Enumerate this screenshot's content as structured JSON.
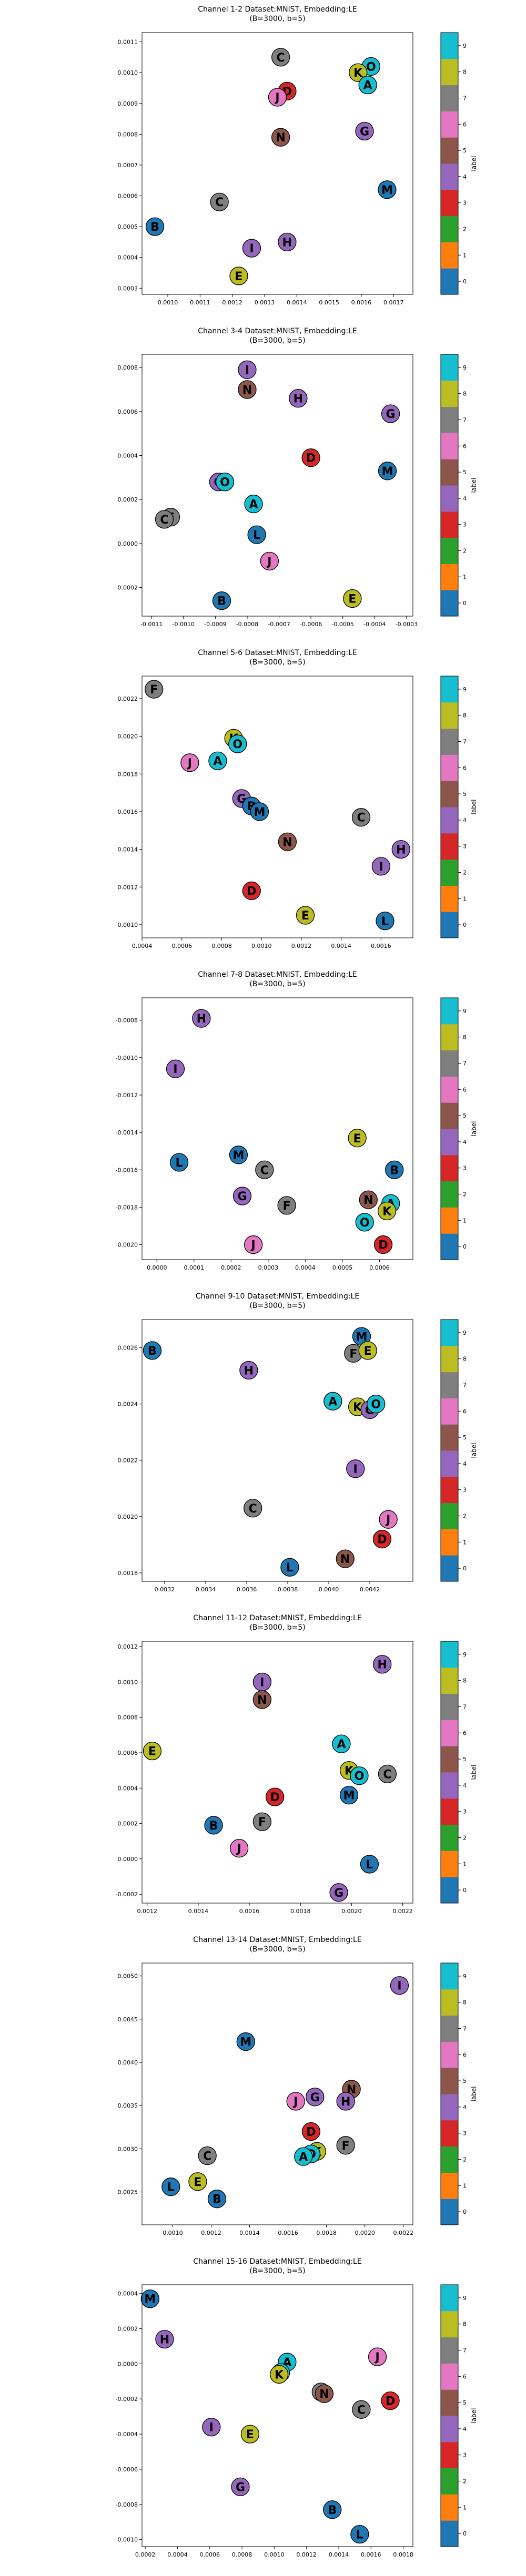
{
  "colorbar": {
    "label": "label",
    "ticks": [
      "0",
      "1",
      "2",
      "3",
      "4",
      "5",
      "6",
      "7",
      "8",
      "9"
    ],
    "colors": [
      "#1f77b4",
      "#ff7f0e",
      "#2ca02c",
      "#d62728",
      "#9467bd",
      "#8c564b",
      "#e377c2",
      "#7f7f7f",
      "#bcbd22",
      "#17becf"
    ]
  },
  "letter_colors": {
    "B": "#1f77b4",
    "D": "#d62728",
    "H": "#9467bd",
    "G": "#9467bd",
    "I": "#9467bd",
    "N": "#8c564b",
    "J": "#e377c2",
    "C": "#7f7f7f",
    "F": "#7f7f7f",
    "E": "#bcbd22",
    "K": "#bcbd22",
    "A": "#17becf",
    "O": "#17becf",
    "L": "#1f77b4",
    "M": "#1f77b4"
  },
  "chart_data": [
    {
      "type": "scatter",
      "title": "Channel 1-2 Dataset:MNIST, Embedding:LE",
      "subtitle": "(B=3000, b=5)",
      "xlim": [
        0.00092,
        0.00176
      ],
      "ylim": [
        0.00028,
        0.00113
      ],
      "xticks": [
        "0.0010",
        "0.0011",
        "0.0012",
        "0.0013",
        "0.0014",
        "0.0015",
        "0.0016",
        "0.0017"
      ],
      "yticks": [
        "0.0003",
        "0.0004",
        "0.0005",
        "0.0006",
        "0.0007",
        "0.0008",
        "0.0009",
        "0.0010",
        "0.0011"
      ],
      "points": [
        {
          "label": "C",
          "x": 0.00135,
          "y": 0.00105
        },
        {
          "label": "O",
          "x": 0.00163,
          "y": 0.00102
        },
        {
          "label": "K",
          "x": 0.00159,
          "y": 0.001
        },
        {
          "label": "A",
          "x": 0.00162,
          "y": 0.00096
        },
        {
          "label": "D",
          "x": 0.00137,
          "y": 0.00094
        },
        {
          "label": "J",
          "x": 0.00134,
          "y": 0.00092
        },
        {
          "label": "G",
          "x": 0.00161,
          "y": 0.00081
        },
        {
          "label": "N",
          "x": 0.00135,
          "y": 0.00079
        },
        {
          "label": "M",
          "x": 0.00168,
          "y": 0.00062
        },
        {
          "label": "C",
          "x": 0.00116,
          "y": 0.00058
        },
        {
          "label": "B",
          "x": 0.00096,
          "y": 0.0005
        },
        {
          "label": "H",
          "x": 0.00137,
          "y": 0.00045
        },
        {
          "label": "I",
          "x": 0.00126,
          "y": 0.00043
        },
        {
          "label": "E",
          "x": 0.00122,
          "y": 0.00034
        }
      ]
    },
    {
      "type": "scatter",
      "title": "Channel 3-4 Dataset:MNIST, Embedding:LE",
      "subtitle": "(B=3000, b=5)",
      "xlim": [
        -0.00113,
        -0.00028
      ],
      "ylim": [
        -0.00033,
        0.00086
      ],
      "xticks": [
        "-0.0011",
        "-0.0010",
        "-0.0009",
        "-0.0008",
        "-0.0007",
        "-0.0006",
        "-0.0005",
        "-0.0004",
        "-0.0003"
      ],
      "yticks": [
        "-0.0002",
        "0.0000",
        "0.0002",
        "0.0004",
        "0.0006",
        "0.0008"
      ],
      "points": [
        {
          "label": "I",
          "x": -0.0008,
          "y": 0.00079
        },
        {
          "label": "N",
          "x": -0.0008,
          "y": 0.0007
        },
        {
          "label": "H",
          "x": -0.00064,
          "y": 0.00066
        },
        {
          "label": "G",
          "x": -0.00035,
          "y": 0.00059
        },
        {
          "label": "D",
          "x": -0.0006,
          "y": 0.00039
        },
        {
          "label": "M",
          "x": -0.00036,
          "y": 0.00033
        },
        {
          "label": "G",
          "x": -0.00089,
          "y": 0.00028
        },
        {
          "label": "O",
          "x": -0.00087,
          "y": 0.00028
        },
        {
          "label": "A",
          "x": -0.00078,
          "y": 0.00018
        },
        {
          "label": "F",
          "x": -0.00104,
          "y": 0.00012
        },
        {
          "label": "C",
          "x": -0.00106,
          "y": 0.00011
        },
        {
          "label": "L",
          "x": -0.00077,
          "y": 4e-05
        },
        {
          "label": "J",
          "x": -0.00073,
          "y": -8e-05
        },
        {
          "label": "B",
          "x": -0.00088,
          "y": -0.00026
        },
        {
          "label": "E",
          "x": -0.00047,
          "y": -0.00025
        }
      ]
    },
    {
      "type": "scatter",
      "title": "Channel 5-6 Dataset:MNIST, Embedding:LE",
      "subtitle": "(B=3000, b=5)",
      "xlim": [
        0.0004,
        0.00176
      ],
      "ylim": [
        0.00093,
        0.00232
      ],
      "xticks": [
        "0.0004",
        "0.0006",
        "0.0008",
        "0.0010",
        "0.0012",
        "0.0014",
        "0.0016"
      ],
      "yticks": [
        "0.0010",
        "0.0012",
        "0.0014",
        "0.0016",
        "0.0018",
        "0.0020",
        "0.0022"
      ],
      "points": [
        {
          "label": "F",
          "x": 0.00046,
          "y": 0.00225
        },
        {
          "label": "K",
          "x": 0.00086,
          "y": 0.00199
        },
        {
          "label": "O",
          "x": 0.00088,
          "y": 0.00196
        },
        {
          "label": "A",
          "x": 0.00078,
          "y": 0.00187
        },
        {
          "label": "J",
          "x": 0.00064,
          "y": 0.00186
        },
        {
          "label": "G",
          "x": 0.0009,
          "y": 0.00167
        },
        {
          "label": "B",
          "x": 0.00095,
          "y": 0.00163
        },
        {
          "label": "M",
          "x": 0.00099,
          "y": 0.0016
        },
        {
          "label": "C",
          "x": 0.0015,
          "y": 0.00157
        },
        {
          "label": "N",
          "x": 0.00113,
          "y": 0.00144
        },
        {
          "label": "H",
          "x": 0.0017,
          "y": 0.0014
        },
        {
          "label": "I",
          "x": 0.0016,
          "y": 0.00131
        },
        {
          "label": "D",
          "x": 0.00095,
          "y": 0.00118
        },
        {
          "label": "E",
          "x": 0.00122,
          "y": 0.00105
        },
        {
          "label": "L",
          "x": 0.00162,
          "y": 0.00102
        }
      ]
    },
    {
      "type": "scatter",
      "title": "Channel 7-8 Dataset:MNIST, Embedding:LE",
      "subtitle": "(B=3000, b=5)",
      "xlim": [
        -4e-05,
        0.00069
      ],
      "ylim": [
        -0.00208,
        -0.00068
      ],
      "xticks": [
        "0.0000",
        "0.0001",
        "0.0002",
        "0.0003",
        "0.0004",
        "0.0005",
        "0.0006"
      ],
      "yticks": [
        "-0.0008",
        "-0.0010",
        "-0.0012",
        "-0.0014",
        "-0.0016",
        "-0.0018",
        "-0.0020"
      ],
      "points": [
        {
          "label": "H",
          "x": 0.00012,
          "y": -0.00079
        },
        {
          "label": "I",
          "x": 5e-05,
          "y": -0.00106
        },
        {
          "label": "E",
          "x": 0.00054,
          "y": -0.00143
        },
        {
          "label": "L",
          "x": 6e-05,
          "y": -0.00156
        },
        {
          "label": "M",
          "x": 0.00022,
          "y": -0.00152
        },
        {
          "label": "C",
          "x": 0.00029,
          "y": -0.0016
        },
        {
          "label": "B",
          "x": 0.00064,
          "y": -0.0016
        },
        {
          "label": "G",
          "x": 0.00023,
          "y": -0.00174
        },
        {
          "label": "F",
          "x": 0.00035,
          "y": -0.00179
        },
        {
          "label": "N",
          "x": 0.00057,
          "y": -0.00176
        },
        {
          "label": "A",
          "x": 0.00063,
          "y": -0.00178
        },
        {
          "label": "K",
          "x": 0.00062,
          "y": -0.00182
        },
        {
          "label": "O",
          "x": 0.00056,
          "y": -0.00188
        },
        {
          "label": "J",
          "x": 0.00026,
          "y": -0.002
        },
        {
          "label": "D",
          "x": 0.00061,
          "y": -0.002
        }
      ]
    },
    {
      "type": "scatter",
      "title": "Channel 9-10 Dataset:MNIST, Embedding:LE",
      "subtitle": "(B=3000, b=5)",
      "xlim": [
        0.00309,
        0.00441
      ],
      "ylim": [
        0.00177,
        0.0027
      ],
      "xticks": [
        "0.0032",
        "0.0034",
        "0.0036",
        "0.0038",
        "0.0040",
        "0.0042"
      ],
      "yticks": [
        "0.0018",
        "0.0020",
        "0.0022",
        "0.0024",
        "0.0026"
      ],
      "points": [
        {
          "label": "B",
          "x": 0.00314,
          "y": 0.00259
        },
        {
          "label": "M",
          "x": 0.00416,
          "y": 0.00264
        },
        {
          "label": "F",
          "x": 0.00412,
          "y": 0.00258
        },
        {
          "label": "E",
          "x": 0.00419,
          "y": 0.00259
        },
        {
          "label": "H",
          "x": 0.00361,
          "y": 0.00252
        },
        {
          "label": "A",
          "x": 0.00402,
          "y": 0.00241
        },
        {
          "label": "K",
          "x": 0.00414,
          "y": 0.00239
        },
        {
          "label": "G",
          "x": 0.0042,
          "y": 0.00238
        },
        {
          "label": "O",
          "x": 0.00423,
          "y": 0.0024
        },
        {
          "label": "I",
          "x": 0.00413,
          "y": 0.00217
        },
        {
          "label": "C",
          "x": 0.00363,
          "y": 0.00203
        },
        {
          "label": "J",
          "x": 0.00429,
          "y": 0.00199
        },
        {
          "label": "D",
          "x": 0.00426,
          "y": 0.00192
        },
        {
          "label": "N",
          "x": 0.00408,
          "y": 0.00185
        },
        {
          "label": "L",
          "x": 0.00381,
          "y": 0.00182
        }
      ]
    },
    {
      "type": "scatter",
      "title": "Channel 11-12 Dataset:MNIST, Embedding:LE",
      "subtitle": "(B=3000, b=5)",
      "xlim": [
        0.00118,
        0.00224
      ],
      "ylim": [
        -0.00025,
        0.00123
      ],
      "xticks": [
        "0.0012",
        "0.0014",
        "0.0016",
        "0.0018",
        "0.0020",
        "0.0022"
      ],
      "yticks": [
        "-0.0002",
        "0.0000",
        "0.0002",
        "0.0004",
        "0.0006",
        "0.0008",
        "0.0010",
        "0.0012"
      ],
      "points": [
        {
          "label": "H",
          "x": 0.00212,
          "y": 0.0011
        },
        {
          "label": "I",
          "x": 0.00165,
          "y": 0.001
        },
        {
          "label": "N",
          "x": 0.00165,
          "y": 0.0009
        },
        {
          "label": "A",
          "x": 0.00196,
          "y": 0.00065
        },
        {
          "label": "E",
          "x": 0.00122,
          "y": 0.00061
        },
        {
          "label": "K",
          "x": 0.00199,
          "y": 0.0005
        },
        {
          "label": "O",
          "x": 0.00203,
          "y": 0.00047
        },
        {
          "label": "C",
          "x": 0.00214,
          "y": 0.00048
        },
        {
          "label": "M",
          "x": 0.00199,
          "y": 0.00036
        },
        {
          "label": "D",
          "x": 0.0017,
          "y": 0.00035
        },
        {
          "label": "F",
          "x": 0.00165,
          "y": 0.00021
        },
        {
          "label": "B",
          "x": 0.00146,
          "y": 0.00019
        },
        {
          "label": "J",
          "x": 0.00156,
          "y": 6e-05
        },
        {
          "label": "L",
          "x": 0.00207,
          "y": -3e-05
        },
        {
          "label": "G",
          "x": 0.00195,
          "y": -0.00019
        }
      ]
    },
    {
      "type": "scatter",
      "title": "Channel 13-14 Dataset:MNIST, Embedding:LE",
      "subtitle": "(B=3000, b=5)",
      "xlim": [
        0.00084,
        0.00225
      ],
      "ylim": [
        0.00212,
        0.00515
      ],
      "xticks": [
        "0.0010",
        "0.0012",
        "0.0014",
        "0.0016",
        "0.0018",
        "0.0020",
        "0.0022"
      ],
      "yticks": [
        "0.0025",
        "0.0030",
        "0.0035",
        "0.0040",
        "0.0045",
        "0.0050"
      ],
      "points": [
        {
          "label": "I",
          "x": 0.00218,
          "y": 0.00489
        },
        {
          "label": "M",
          "x": 0.00138,
          "y": 0.00424
        },
        {
          "label": "N",
          "x": 0.00193,
          "y": 0.00369
        },
        {
          "label": "G",
          "x": 0.00174,
          "y": 0.0036
        },
        {
          "label": "J",
          "x": 0.00164,
          "y": 0.00355
        },
        {
          "label": "H",
          "x": 0.0019,
          "y": 0.00355
        },
        {
          "label": "D",
          "x": 0.00172,
          "y": 0.0032
        },
        {
          "label": "F",
          "x": 0.0019,
          "y": 0.00304
        },
        {
          "label": "K",
          "x": 0.00175,
          "y": 0.00297
        },
        {
          "label": "O",
          "x": 0.00172,
          "y": 0.00294
        },
        {
          "label": "A",
          "x": 0.00168,
          "y": 0.00291
        },
        {
          "label": "C",
          "x": 0.00118,
          "y": 0.00292
        },
        {
          "label": "E",
          "x": 0.00113,
          "y": 0.00262
        },
        {
          "label": "L",
          "x": 0.00099,
          "y": 0.00256
        },
        {
          "label": "B",
          "x": 0.00123,
          "y": 0.00242
        }
      ]
    },
    {
      "type": "scatter",
      "title": "Channel 15-16 Dataset:MNIST, Embedding:LE",
      "subtitle": "(B=3000, b=5)",
      "xlim": [
        0.00018,
        0.00186
      ],
      "ylim": [
        -0.00104,
        0.00045
      ],
      "xticks": [
        "0.0002",
        "0.0004",
        "0.0006",
        "0.0008",
        "0.0010",
        "0.0012",
        "0.0014",
        "0.0016",
        "0.0018"
      ],
      "yticks": [
        "-0.0010",
        "-0.0008",
        "-0.0006",
        "-0.0004",
        "-0.0002",
        "0.0000",
        "0.0002",
        "0.0004"
      ],
      "points": [
        {
          "label": "M",
          "x": 0.00023,
          "y": 0.00037
        },
        {
          "label": "H",
          "x": 0.00032,
          "y": 0.00014
        },
        {
          "label": "A",
          "x": 0.00108,
          "y": 1e-05
        },
        {
          "label": "O",
          "x": 0.00104,
          "y": -5e-05
        },
        {
          "label": "K",
          "x": 0.00103,
          "y": -6e-05
        },
        {
          "label": "J",
          "x": 0.00164,
          "y": 4e-05
        },
        {
          "label": "F",
          "x": 0.00129,
          "y": -0.00016
        },
        {
          "label": "N",
          "x": 0.00131,
          "y": -0.00017
        },
        {
          "label": "D",
          "x": 0.00172,
          "y": -0.00021
        },
        {
          "label": "C",
          "x": 0.00154,
          "y": -0.00026
        },
        {
          "label": "I",
          "x": 0.00061,
          "y": -0.00036
        },
        {
          "label": "E",
          "x": 0.00085,
          "y": -0.0004
        },
        {
          "label": "G",
          "x": 0.00079,
          "y": -0.0007
        },
        {
          "label": "B",
          "x": 0.00136,
          "y": -0.00083
        },
        {
          "label": "L",
          "x": 0.00153,
          "y": -0.00097
        }
      ]
    }
  ]
}
